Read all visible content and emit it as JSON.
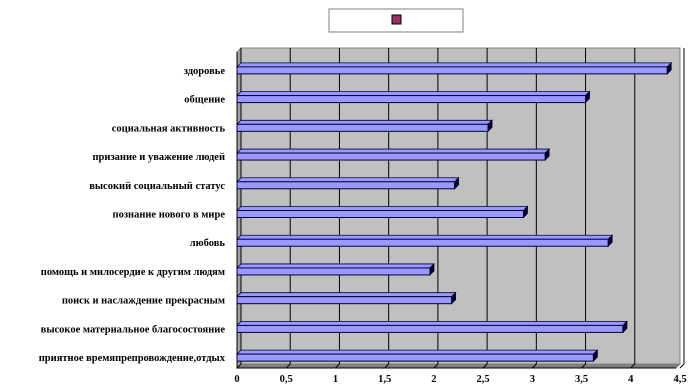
{
  "chart_data": {
    "type": "bar",
    "orientation": "horizontal",
    "title": "",
    "xlabel": "",
    "ylabel": "",
    "xlim": [
      0,
      4.5
    ],
    "categories": [
      "здоровье",
      "общение",
      "социальная активность",
      "призание и уважение людей",
      "высокий социальный статус",
      "познание нового в мире",
      "любовь",
      "помощь и милосердие к другим людям",
      "поиск и наслаждение прекрасным",
      "высокое материальное благосостояние",
      "приятное времяпрепровождение,отдых"
    ],
    "values": [
      4.37,
      3.54,
      2.55,
      3.13,
      2.21,
      2.91,
      3.77,
      1.96,
      2.18,
      3.92,
      3.62
    ],
    "x_ticks": [
      "0",
      "0,5",
      "1",
      "1,5",
      "2",
      "2,5",
      "3",
      "3,5",
      "4",
      "4,5"
    ],
    "grid": true,
    "legend_position": "top",
    "legend": {
      "label": ""
    },
    "colors": {
      "bar_fill": "#9999ff",
      "bar_shadow": "#000033",
      "plot_background": "#c0c0c0",
      "gridline": "#000000",
      "legend_marker": "#993366"
    }
  }
}
